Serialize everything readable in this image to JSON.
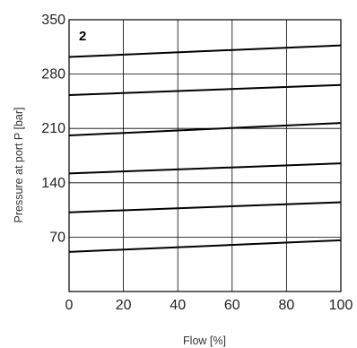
{
  "chart_data": {
    "type": "line",
    "panel_label": "2",
    "xlabel": "Flow [%]",
    "ylabel": "Pressure at port P [bar]",
    "xlim": [
      0,
      100
    ],
    "ylim": [
      0,
      350
    ],
    "x_ticks": [
      0,
      20,
      40,
      60,
      80,
      100
    ],
    "x_tick_labels": [
      "0",
      "20",
      "40",
      "60",
      "80",
      "100"
    ],
    "y_ticks": [
      70,
      140,
      210,
      280,
      350
    ],
    "y_tick_labels": [
      "70",
      "140",
      "210",
      "280",
      "350"
    ],
    "grid": true,
    "series": [
      {
        "x": [
          0,
          100
        ],
        "y": [
          51,
          66
        ]
      },
      {
        "x": [
          0,
          100
        ],
        "y": [
          102,
          115
        ]
      },
      {
        "x": [
          0,
          100
        ],
        "y": [
          152,
          165
        ]
      },
      {
        "x": [
          0,
          100
        ],
        "y": [
          201,
          217
        ]
      },
      {
        "x": [
          0,
          100
        ],
        "y": [
          253,
          266
        ]
      },
      {
        "x": [
          0,
          100
        ],
        "y": [
          302,
          317
        ]
      }
    ]
  }
}
